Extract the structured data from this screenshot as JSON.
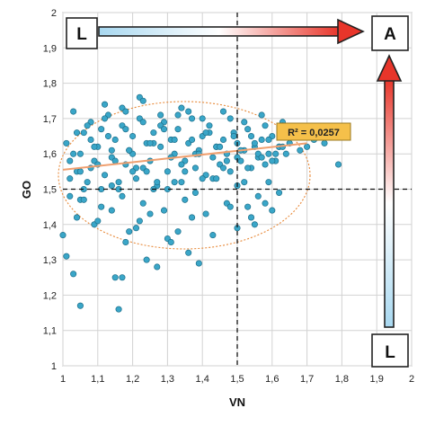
{
  "chart_data": {
    "type": "scatter",
    "xlabel": "VN",
    "ylabel": "GO",
    "xlim": [
      1,
      2
    ],
    "ylim": [
      1,
      2
    ],
    "x_ticks": [
      "1",
      "1,1",
      "1,2",
      "1,3",
      "1,4",
      "1,5",
      "1,6",
      "1,7",
      "1,8",
      "1,9",
      "2"
    ],
    "y_ticks": [
      "1",
      "1,1",
      "1,2",
      "1,3",
      "1,4",
      "1,5",
      "1,6",
      "1,7",
      "1,8",
      "1,9",
      "2"
    ],
    "grid": true,
    "reference_lines": {
      "x": 1.5,
      "y": 1.5
    },
    "trendline": {
      "x": [
        1.0,
        1.7
      ],
      "y": [
        1.555,
        1.63
      ]
    },
    "annotation": "R² = 0,0257",
    "corner_labels": {
      "top_left": "L",
      "top_right": "A",
      "bottom_right": "L"
    },
    "colors": {
      "points": "#3aa6c8",
      "point_edge": "#1d6f8a",
      "trend": "#f0a070",
      "ellipse": "#e88a3a",
      "annotation_bg": "#f5c04a"
    },
    "points": {
      "x": [
        1.01,
        1.02,
        1.03,
        1.04,
        1.05,
        1.06,
        1.07,
        1.08,
        1.09,
        1.1,
        1.11,
        1.12,
        1.13,
        1.14,
        1.15,
        1.16,
        1.17,
        1.18,
        1.19,
        1.2,
        1.21,
        1.22,
        1.23,
        1.24,
        1.25,
        1.26,
        1.27,
        1.28,
        1.29,
        1.3,
        1.31,
        1.32,
        1.33,
        1.34,
        1.35,
        1.36,
        1.37,
        1.38,
        1.39,
        1.4,
        1.41,
        1.42,
        1.43,
        1.44,
        1.45,
        1.46,
        1.47,
        1.48,
        1.49,
        1.5,
        1.51,
        1.52,
        1.53,
        1.54,
        1.55,
        1.56,
        1.57,
        1.58,
        1.59,
        1.6,
        1.61,
        1.62,
        1.63,
        1.64,
        1.65,
        1.66,
        1.68,
        1.7,
        1.72,
        1.75,
        1.79,
        1.02,
        1.04,
        1.06,
        1.08,
        1.1,
        1.12,
        1.14,
        1.16,
        1.18,
        1.2,
        1.22,
        1.24,
        1.26,
        1.28,
        1.3,
        1.32,
        1.34,
        1.36,
        1.38,
        1.4,
        1.42,
        1.44,
        1.46,
        1.48,
        1.5,
        1.52,
        1.54,
        1.56,
        1.58,
        1.6,
        1.62,
        1.64,
        1.03,
        1.05,
        1.07,
        1.09,
        1.11,
        1.13,
        1.15,
        1.17,
        1.19,
        1.21,
        1.23,
        1.25,
        1.27,
        1.29,
        1.31,
        1.33,
        1.35,
        1.37,
        1.39,
        1.41,
        1.43,
        1.45,
        1.47,
        1.49,
        1.51,
        1.53,
        1.55,
        1.57,
        1.59,
        1.61,
        1.63,
        1.02,
        1.05,
        1.08,
        1.11,
        1.14,
        1.17,
        1.2,
        1.23,
        1.26,
        1.29,
        1.32,
        1.35,
        1.38,
        1.41,
        1.44,
        1.47,
        1.5,
        1.53,
        1.56,
        1.59,
        1.62,
        1.0,
        1.01,
        1.03,
        1.04,
        1.05,
        1.09,
        1.15,
        1.16,
        1.17,
        1.18,
        1.21,
        1.22,
        1.24,
        1.27,
        1.3,
        1.33,
        1.36,
        1.39,
        1.5,
        1.55,
        1.58,
        1.6,
        1.06,
        1.1,
        1.14,
        1.19,
        1.25,
        1.31,
        1.37,
        1.43,
        1.48,
        1.54,
        1.12,
        1.18,
        1.23,
        1.28,
        1.34,
        1.4,
        1.46,
        1.52,
        1.57,
        1.63,
        1.67
      ],
      "y": [
        1.63,
        1.48,
        1.72,
        1.55,
        1.6,
        1.66,
        1.52,
        1.69,
        1.58,
        1.62,
        1.67,
        1.54,
        1.71,
        1.59,
        1.64,
        1.5,
        1.68,
        1.57,
        1.61,
        1.65,
        1.53,
        1.7,
        1.56,
        1.63,
        1.58,
        1.66,
        1.51,
        1.62,
        1.69,
        1.55,
        1.64,
        1.6,
        1.67,
        1.52,
        1.58,
        1.63,
        1.7,
        1.56,
        1.61,
        1.65,
        1.54,
        1.68,
        1.59,
        1.62,
        1.57,
        1.64,
        1.6,
        1.55,
        1.66,
        1.63,
        1.58,
        1.61,
        1.67,
        1.56,
        1.62,
        1.59,
        1.64,
        1.57,
        1.6,
        1.65,
        1.58,
        1.62,
        1.69,
        1.6,
        1.63,
        1.65,
        1.61,
        1.62,
        1.64,
        1.63,
        1.57,
        1.58,
        1.66,
        1.5,
        1.64,
        1.57,
        1.7,
        1.61,
        1.52,
        1.67,
        1.6,
        1.76,
        1.55,
        1.63,
        1.68,
        1.5,
        1.64,
        1.57,
        1.72,
        1.6,
        1.53,
        1.66,
        1.62,
        1.56,
        1.7,
        1.59,
        1.52,
        1.65,
        1.6,
        1.68,
        1.58,
        1.62,
        1.66,
        1.6,
        1.55,
        1.68,
        1.62,
        1.5,
        1.65,
        1.58,
        1.73,
        1.61,
        1.56,
        1.69,
        1.63,
        1.52,
        1.67,
        1.59,
        1.71,
        1.55,
        1.64,
        1.6,
        1.66,
        1.53,
        1.62,
        1.58,
        1.65,
        1.61,
        1.56,
        1.63,
        1.59,
        1.64,
        1.6,
        1.62,
        1.53,
        1.47,
        1.56,
        1.45,
        1.51,
        1.48,
        1.55,
        1.46,
        1.5,
        1.44,
        1.52,
        1.47,
        1.49,
        1.43,
        1.53,
        1.46,
        1.51,
        1.45,
        1.48,
        1.52,
        1.49,
        1.37,
        1.31,
        1.26,
        1.42,
        1.17,
        1.4,
        1.25,
        1.16,
        1.25,
        1.35,
        1.39,
        1.41,
        1.3,
        1.28,
        1.36,
        1.38,
        1.32,
        1.29,
        1.39,
        1.4,
        1.46,
        1.44,
        1.47,
        1.41,
        1.44,
        1.38,
        1.43,
        1.35,
        1.42,
        1.37,
        1.45,
        1.42,
        1.74,
        1.72,
        1.75,
        1.71,
        1.73,
        1.7,
        1.72,
        1.69,
        1.71,
        1.68,
        1.66
      ]
    }
  }
}
